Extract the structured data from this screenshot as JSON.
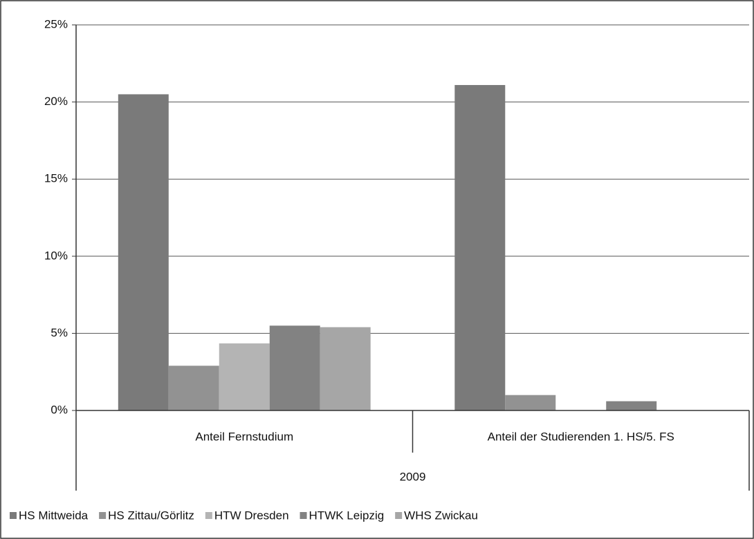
{
  "chart_data": {
    "type": "bar",
    "categories": [
      "Anteil Fernstudium",
      "Anteil der Studierenden 1. HS/5. FS"
    ],
    "group_label": "2009",
    "series": [
      {
        "name": "HS Mittweida",
        "color": "#7a7a7a",
        "values": [
          20.5,
          21.1
        ]
      },
      {
        "name": "HS Zittau/Görlitz",
        "color": "#929292",
        "values": [
          2.9,
          1.0
        ]
      },
      {
        "name": "HTW Dresden",
        "color": "#b4b4b4",
        "values": [
          4.35,
          null
        ]
      },
      {
        "name": "HTWK Leipzig",
        "color": "#828282",
        "values": [
          5.5,
          0.6
        ]
      },
      {
        "name": "WHS Zwickau",
        "color": "#a6a6a6",
        "values": [
          5.4,
          null
        ]
      }
    ],
    "ylim": [
      0,
      25
    ],
    "yticks": [
      {
        "value": 0,
        "label": "0%"
      },
      {
        "value": 5,
        "label": "5%"
      },
      {
        "value": 10,
        "label": "10%"
      },
      {
        "value": 15,
        "label": "15%"
      },
      {
        "value": 20,
        "label": "20%"
      },
      {
        "value": 25,
        "label": "25%"
      }
    ],
    "grid": true,
    "legend": "bottom"
  }
}
